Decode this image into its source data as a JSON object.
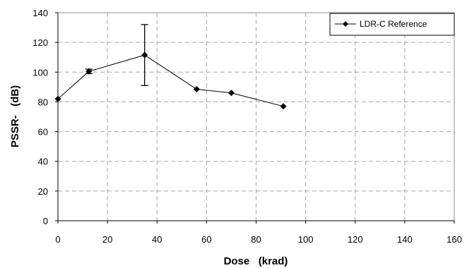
{
  "chart_data": {
    "type": "line",
    "xlabel": "Dose   (krad)",
    "ylabel": "PSSR-   (dB)",
    "xlim": [
      0,
      160
    ],
    "ylim": [
      0,
      140
    ],
    "x_ticks": [
      0,
      20,
      40,
      60,
      80,
      100,
      120,
      140,
      160
    ],
    "y_ticks": [
      0,
      20,
      40,
      60,
      80,
      100,
      120,
      140
    ],
    "grid": "dashed",
    "legend_position": "top-right",
    "series": [
      {
        "name": "LDR-C Reference",
        "color": "#000000",
        "marker": "diamond",
        "x": [
          0,
          12.5,
          35,
          56,
          70,
          91
        ],
        "y": [
          82,
          100.5,
          111.5,
          88.5,
          86,
          77
        ],
        "error": [
          0,
          1.5,
          20.5,
          0,
          0,
          0
        ]
      }
    ]
  }
}
